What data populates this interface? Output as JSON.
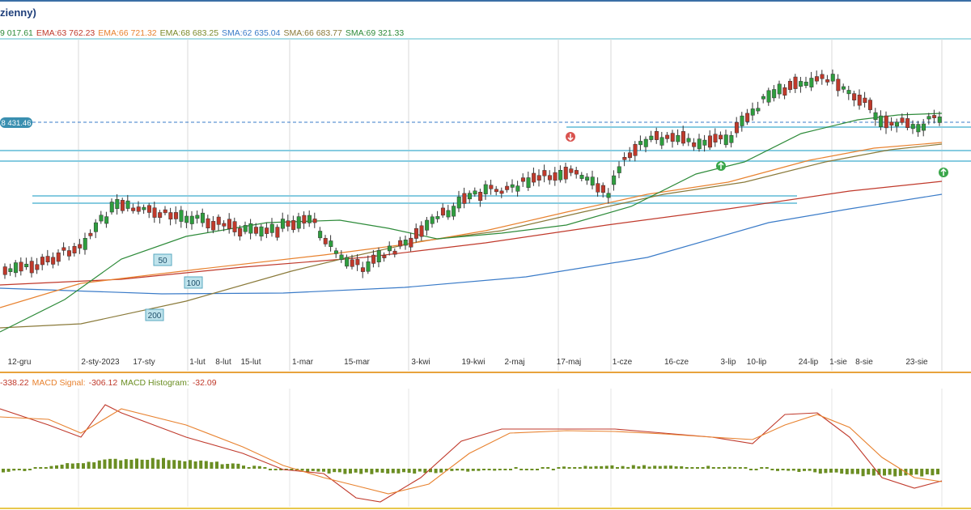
{
  "header": {
    "title": "zienny)"
  },
  "legend": [
    {
      "text": "9 017.61",
      "color": "#2e8b3a"
    },
    {
      "text": "EMA:63 762.23",
      "color": "#c0392b"
    },
    {
      "text": "EMA:66 721.32",
      "color": "#e8822f"
    },
    {
      "text": "EMA:68 683.25",
      "color": "#7a8a2a"
    },
    {
      "text": "SMA:62 635.04",
      "color": "#3a7bc8"
    },
    {
      "text": "SMA:66 683.77",
      "color": "#8a7a3a"
    },
    {
      "text": "SMA:69 321.33",
      "color": "#2e8b3a"
    }
  ],
  "price_tag": "8 431.46",
  "ma_labels": [
    "50",
    "100",
    "200"
  ],
  "macd_legend": [
    {
      "text": "-338.22",
      "color": "#c0392b"
    },
    {
      "text": "MACD Signal:",
      "color": "#e8822f"
    },
    {
      "text": "-306.12",
      "color": "#c0392b"
    },
    {
      "text": "MACD Histogram:",
      "color": "#6b8e23"
    },
    {
      "text": "-32.09",
      "color": "#c0392b"
    }
  ],
  "chart_data": {
    "type": "candlestick",
    "x_labels": [
      "12-gru",
      "2-sty-2023",
      "17-sty",
      "1-lut",
      "8-lut",
      "15-lut",
      "1-mar",
      "15-mar",
      "3-kwi",
      "19-kwi",
      "2-maj",
      "17-maj",
      "1-cze",
      "16-cze",
      "3-lip",
      "10-lip",
      "24-lip",
      "1-sie",
      "8-sie",
      "23-sie"
    ],
    "current_price": "8 431.46",
    "moving_averages": [
      "EMA",
      "EMA",
      "EMA",
      "SMA",
      "SMA",
      "SMA"
    ],
    "indicators": [
      "MACD",
      "MACD Signal",
      "MACD Histogram"
    ]
  }
}
